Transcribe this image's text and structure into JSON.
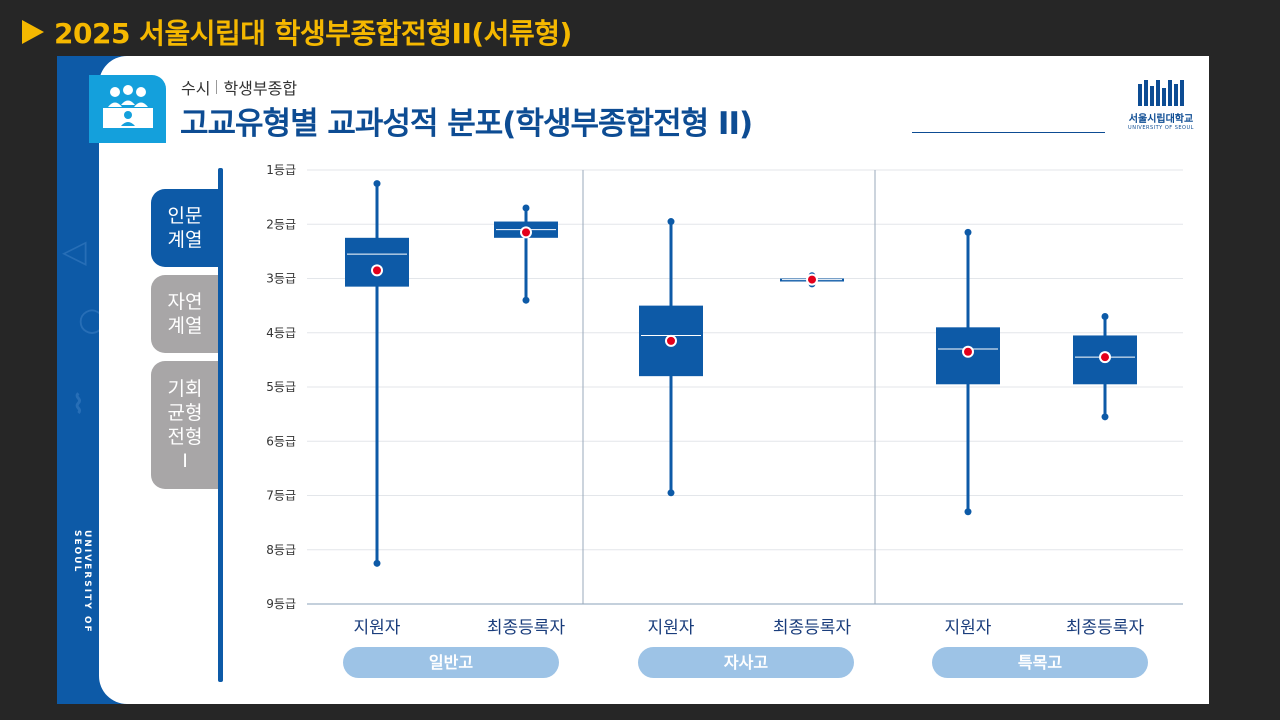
{
  "slide_title": "2025 서울시립대 학생부종합전형II(서류형)",
  "header": {
    "category": "수시",
    "sub_category": "학생부종합",
    "title": "고교유형별 교과성적 분포(학생부종합전형 II)"
  },
  "logo": {
    "name": "서울시립대학교",
    "english": "UNIVERSITY OF SEOUL"
  },
  "side_text": "UNIVERSITY OF SEOUL",
  "tabs": [
    {
      "label": "인문\n계열",
      "active": true
    },
    {
      "label": "자연\n계열",
      "active": false
    },
    {
      "label": "기회\n균형\n전형\nⅠ",
      "active": false
    }
  ],
  "colors": {
    "box": "#0d5aa7",
    "median": "#ffffff",
    "mean": "#e3001b",
    "pill": "#9dc3e6"
  },
  "chart_data": {
    "type": "boxplot",
    "y_axis": {
      "reversed": true,
      "range": [
        1,
        9
      ],
      "tick_labels": [
        "1등급",
        "2등급",
        "3등급",
        "4등급",
        "5등급",
        "6등급",
        "7등급",
        "8등급",
        "9등급"
      ]
    },
    "groups": [
      {
        "name": "일반고",
        "series": [
          {
            "label": "지원자",
            "min": 1.25,
            "q1": 2.25,
            "median": 2.55,
            "q3": 3.15,
            "max": 8.25,
            "mean": 2.85
          },
          {
            "label": "최종등록자",
            "min": 1.7,
            "q1": 1.95,
            "median": 2.1,
            "q3": 2.25,
            "max": 3.4,
            "mean": 2.15
          }
        ]
      },
      {
        "name": "자사고",
        "series": [
          {
            "label": "지원자",
            "min": 1.95,
            "q1": 3.5,
            "median": 4.05,
            "q3": 4.8,
            "max": 6.95,
            "mean": 4.15
          },
          {
            "label": "최종등록자",
            "min": 2.95,
            "q1": 3.0,
            "median": 3.02,
            "q3": 3.05,
            "max": 3.1,
            "mean": 3.02
          }
        ]
      },
      {
        "name": "특목고",
        "series": [
          {
            "label": "지원자",
            "min": 2.15,
            "q1": 3.9,
            "median": 4.3,
            "q3": 4.95,
            "max": 7.3,
            "mean": 4.35
          },
          {
            "label": "최종등록자",
            "min": 3.7,
            "q1": 4.05,
            "median": 4.45,
            "q3": 4.95,
            "max": 5.55,
            "mean": 4.45
          }
        ]
      }
    ]
  }
}
